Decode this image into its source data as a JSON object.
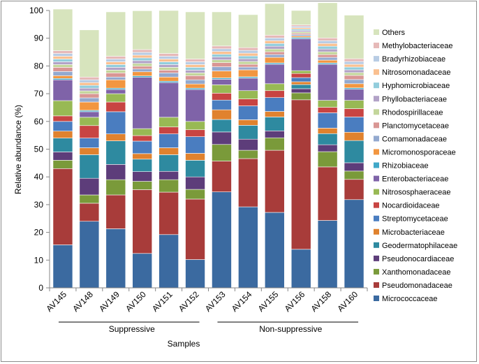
{
  "chart_data": {
    "type": "bar",
    "stacked": true,
    "ylabel": "Relative abundance (%)",
    "xlabel": "Samples",
    "ylim": [
      0,
      100
    ],
    "yticks": [
      0,
      10,
      20,
      30,
      40,
      50,
      60,
      70,
      80,
      90,
      100
    ],
    "grid": false,
    "legend_position": "right",
    "categories": [
      "AV145",
      "AV148",
      "AV149",
      "AV150",
      "AV151",
      "AV152",
      "AV153",
      "AV154",
      "AV155",
      "AV156",
      "AV158",
      "AV160"
    ],
    "groups": [
      {
        "label": "Suppressive",
        "from": 0,
        "to": 5
      },
      {
        "label": "Non-suppressive",
        "from": 6,
        "to": 11
      }
    ],
    "series": [
      {
        "name": "Micrococcaceae",
        "color": "#3b6aa0",
        "values": [
          15.5,
          24,
          21.3,
          12.4,
          19.2,
          10.2,
          34.6,
          29.2,
          27.2,
          13.9,
          24.3,
          31.8
        ]
      },
      {
        "name": "Pseudomonadaceae",
        "color": "#a83c3a",
        "values": [
          27.5,
          6.5,
          12.2,
          23,
          15.3,
          21.8,
          11.1,
          17.4,
          22.4,
          53.9,
          19.3,
          7.3
        ]
      },
      {
        "name": "Xanthomonadaceae",
        "color": "#7a9a3a",
        "values": [
          3,
          3,
          5.5,
          3,
          4.5,
          3.5,
          6,
          3,
          4.5,
          2.5,
          5.5,
          3
        ]
      },
      {
        "name": "Pseudonocardiaceae",
        "color": "#5d3d7a",
        "values": [
          3,
          6,
          5.5,
          3.5,
          3,
          4.5,
          4.5,
          4,
          2.5,
          1.5,
          2.5,
          3
        ]
      },
      {
        "name": "Geodermatophilaceae",
        "color": "#2e8aa0",
        "values": [
          5,
          8.5,
          8.5,
          4.5,
          6,
          6,
          4.5,
          5,
          5,
          1.5,
          4,
          8
        ]
      },
      {
        "name": "Microbacteriaceae",
        "color": "#e0822e",
        "values": [
          2.5,
          2.5,
          2.5,
          2,
          2.5,
          2.5,
          3.5,
          2,
          2,
          1,
          2,
          3
        ]
      },
      {
        "name": "Streptomycetaceae",
        "color": "#4a7dc0",
        "values": [
          3.5,
          3.5,
          8,
          4.5,
          5,
          6,
          3.5,
          5,
          5,
          1.5,
          5.5,
          5.5
        ]
      },
      {
        "name": "Nocardioidaceae",
        "color": "#c84442",
        "values": [
          2,
          4.5,
          3.5,
          2,
          2.5,
          2.5,
          2.5,
          2.5,
          2.5,
          1.5,
          2,
          3
        ]
      },
      {
        "name": "Nitrososphaeraceae",
        "color": "#98b954",
        "values": [
          5.5,
          3,
          3,
          2.5,
          3.5,
          3,
          3,
          3,
          2.5,
          1,
          2.5,
          3
        ]
      },
      {
        "name": "Enterobacteriaceae",
        "color": "#7f63a8",
        "values": [
          7.5,
          2,
          1.5,
          18.5,
          12.5,
          11.5,
          2,
          4.5,
          7,
          11.5,
          13,
          4
        ]
      },
      {
        "name": "Rhizobiaceae",
        "color": "#40a8c8",
        "values": [
          0.5,
          0.5,
          0.5,
          0.5,
          0.5,
          0.5,
          0.5,
          0.5,
          0.5,
          0.5,
          0.5,
          0.5
        ]
      },
      {
        "name": "Micromonosporaceae",
        "color": "#f29640",
        "values": [
          1,
          3,
          3,
          1.5,
          1.5,
          1.5,
          2.5,
          2.5,
          2,
          0.5,
          1,
          1.5
        ]
      },
      {
        "name": "Comamonadaceae",
        "color": "#93a9cf",
        "values": [
          1.5,
          1.5,
          1,
          1,
          1.5,
          1.5,
          1.5,
          1,
          1,
          0.5,
          1,
          1.5
        ]
      },
      {
        "name": "Planctomycetaceae",
        "color": "#d99694",
        "values": [
          1.5,
          1.5,
          1.5,
          1,
          1,
          1.5,
          1.5,
          1,
          1,
          0.5,
          1,
          1.5
        ]
      },
      {
        "name": "Rhodospirillaceae",
        "color": "#c3d69b",
        "values": [
          1,
          1,
          1,
          1,
          1,
          1,
          1,
          1,
          1,
          0.5,
          1,
          1
        ]
      },
      {
        "name": "Phyllobacteriaceae",
        "color": "#b2a2c7",
        "values": [
          1,
          1,
          1,
          1,
          1,
          1,
          1,
          1,
          1,
          0.5,
          1,
          1
        ]
      },
      {
        "name": "Hyphomicrobiaceae",
        "color": "#92cddc",
        "values": [
          1,
          1,
          1,
          1,
          1,
          1,
          1,
          1,
          1,
          0.5,
          1,
          1
        ]
      },
      {
        "name": "Nitrosomonadaceae",
        "color": "#fac090",
        "values": [
          1,
          1,
          1,
          1,
          1,
          1,
          1,
          1,
          1,
          0.5,
          1,
          1
        ]
      },
      {
        "name": "Bradyrhizobiaceae",
        "color": "#b8cce4",
        "values": [
          1,
          1,
          1,
          1,
          1,
          1,
          1,
          1,
          1,
          0.5,
          1,
          1
        ]
      },
      {
        "name": "Methylobacteriaceae",
        "color": "#e6b9b8",
        "values": [
          1,
          1,
          1,
          1,
          1,
          1,
          1,
          1,
          1,
          0.5,
          1,
          1
        ]
      },
      {
        "name": "Others",
        "color": "#d7e4bd",
        "values": [
          15,
          17,
          16,
          14,
          15.5,
          17,
          12.3,
          11.9,
          11.4,
          5.2,
          12.7,
          15.7
        ]
      }
    ]
  }
}
